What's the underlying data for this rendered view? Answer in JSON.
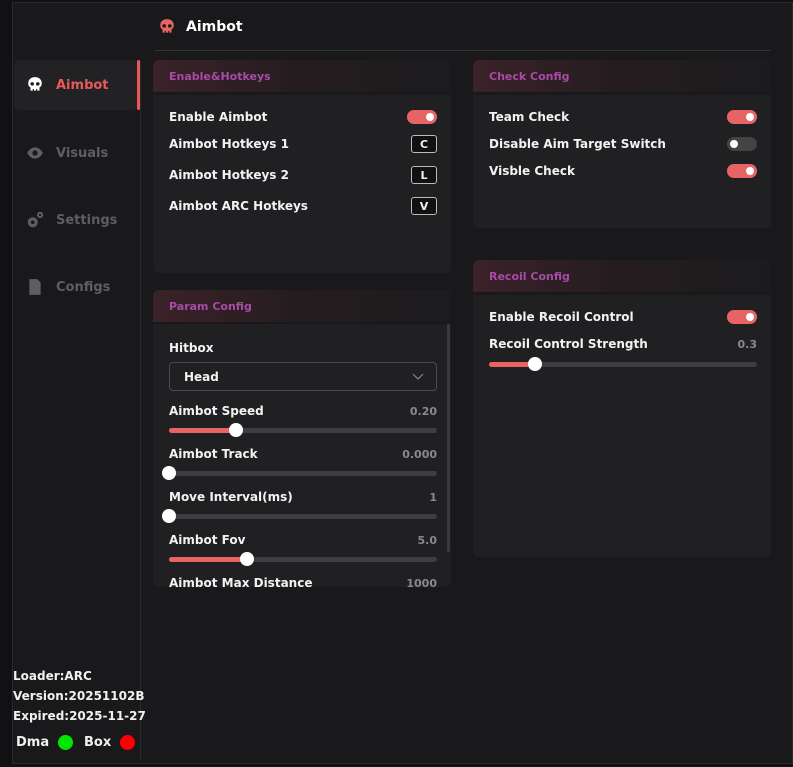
{
  "header": {
    "title": "Aimbot",
    "icon": "skull-icon"
  },
  "sidebar": {
    "items": [
      {
        "label": "Aimbot",
        "icon": "skull-icon",
        "active": true
      },
      {
        "label": "Visuals",
        "icon": "eye-icon"
      },
      {
        "label": "Settings",
        "icon": "gears-icon"
      },
      {
        "label": "Configs",
        "icon": "file-icon"
      }
    ],
    "info": {
      "loader": "Loader:ARC",
      "version": "Version:20251102B",
      "expired": "Expired:2025-11-27"
    },
    "status": [
      {
        "label": "Dma",
        "color": "#00e600"
      },
      {
        "label": "Box",
        "color": "#ff0000"
      }
    ]
  },
  "enable_hotkeys": {
    "title": "Enable&Hotkeys",
    "enable_label": "Enable Aimbot",
    "enable_on": true,
    "hotkeys": [
      {
        "label": "Aimbot Hotkeys 1",
        "key": "C"
      },
      {
        "label": "Aimbot Hotkeys 2",
        "key": "L"
      },
      {
        "label": "Aimbot ARC Hotkeys",
        "key": "V"
      }
    ]
  },
  "check_config": {
    "title": "Check Config",
    "items": [
      {
        "label": "Team Check",
        "on": true
      },
      {
        "label": "Disable Aim Target Switch",
        "on": false
      },
      {
        "label": "Visble Check",
        "on": true
      }
    ]
  },
  "param_config": {
    "title": "Param Config",
    "hitbox_label": "Hitbox",
    "hitbox_value": "Head",
    "sliders": [
      {
        "label": "Aimbot Speed",
        "value": "0.20",
        "fraction": 0.25
      },
      {
        "label": "Aimbot Track",
        "value": "0.000",
        "fraction": 0
      },
      {
        "label": "Move Interval(ms)",
        "value": "1",
        "fraction": 0
      },
      {
        "label": "Aimbot Fov",
        "value": "5.0",
        "fraction": 0.29
      },
      {
        "label": "Aimbot Max Distance",
        "value": "1000"
      }
    ]
  },
  "recoil_config": {
    "title": "Recoil Config",
    "enable_label": "Enable Recoil Control",
    "enable_on": true,
    "strength_label": "Recoil Control Strength",
    "strength_value": "0.3",
    "strength_fraction": 0.17
  },
  "accent": "#e86464"
}
